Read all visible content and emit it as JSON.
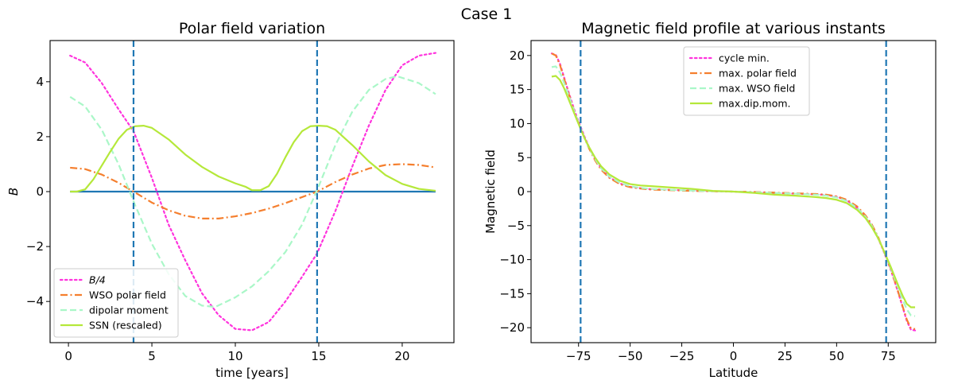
{
  "suptitle": "Case 1",
  "chart_data": [
    {
      "type": "line",
      "title": "Polar field variation",
      "xlabel": "time [years]",
      "ylabel": "B",
      "xlim": [
        -1.1,
        23.1
      ],
      "ylim": [
        -5.5,
        5.5
      ],
      "xticks": [
        0,
        5,
        10,
        15,
        20
      ],
      "xtick_labels": [
        "0",
        "5",
        "10",
        "15",
        "20"
      ],
      "yticks": [
        -4,
        -2,
        0,
        2,
        4
      ],
      "ytick_labels": [
        "−4",
        "−2",
        "0",
        "2",
        "4"
      ],
      "vlines": [
        3.9,
        14.9
      ],
      "hline": {
        "y": 0,
        "x": [
          0.1,
          22
        ],
        "color": "#1f77b4"
      },
      "legend_position": "lower-left",
      "series": [
        {
          "name": "B/4",
          "color": "#ff33dd",
          "dash": "dotted",
          "x": [
            0.1,
            1,
            2,
            3,
            3.9,
            5,
            6,
            7,
            8,
            9,
            10,
            11,
            12,
            13,
            14,
            14.9,
            16,
            17,
            18,
            19,
            20,
            21,
            22
          ],
          "y": [
            4.95,
            4.7,
            3.95,
            3.0,
            2.2,
            0.5,
            -1.2,
            -2.5,
            -3.7,
            -4.5,
            -5.0,
            -5.05,
            -4.75,
            -4.0,
            -3.1,
            -2.25,
            -0.7,
            0.9,
            2.4,
            3.7,
            4.6,
            4.95,
            5.05
          ]
        },
        {
          "name": "WSO polar field",
          "color": "#f57f2e",
          "dash": "dashdot",
          "x": [
            0.1,
            1,
            2,
            3,
            3.9,
            5,
            6,
            7,
            8,
            9,
            10,
            11,
            12,
            13,
            14,
            14.9,
            16,
            17,
            18,
            19,
            20,
            21,
            22
          ],
          "y": [
            0.87,
            0.82,
            0.62,
            0.32,
            0.0,
            -0.4,
            -0.68,
            -0.88,
            -0.98,
            -0.98,
            -0.9,
            -0.78,
            -0.62,
            -0.42,
            -0.2,
            0.0,
            0.35,
            0.62,
            0.84,
            0.97,
            1.0,
            0.97,
            0.88
          ]
        },
        {
          "name": "dipolar moment",
          "color": "#aaf7c8",
          "dash": "dashed",
          "x": [
            0.1,
            1,
            2,
            3,
            4,
            5,
            6,
            7,
            8,
            8.8,
            10,
            11,
            12,
            13,
            14,
            15,
            16,
            17,
            18,
            19,
            19.7,
            21,
            22
          ],
          "y": [
            3.45,
            3.1,
            2.25,
            1.0,
            -0.5,
            -1.9,
            -3.0,
            -3.8,
            -4.15,
            -4.2,
            -3.85,
            -3.45,
            -2.9,
            -2.2,
            -1.2,
            0.2,
            1.7,
            2.9,
            3.7,
            4.1,
            4.2,
            3.95,
            3.55
          ]
        },
        {
          "name": "SSN (rescaled)",
          "color": "#b5e83a",
          "dash": "solid",
          "x": [
            0.1,
            0.5,
            1,
            1.5,
            2,
            2.5,
            3,
            3.5,
            4,
            4.5,
            5,
            6,
            7,
            8,
            9,
            10,
            10.6,
            11,
            11.5,
            12,
            12.5,
            13,
            13.5,
            14,
            14.5,
            15,
            15.5,
            16,
            17,
            18,
            19,
            20,
            21,
            22
          ],
          "y": [
            0.0,
            0.0,
            0.08,
            0.45,
            0.95,
            1.45,
            1.92,
            2.25,
            2.38,
            2.4,
            2.32,
            1.9,
            1.35,
            0.9,
            0.55,
            0.3,
            0.18,
            0.05,
            0.05,
            0.2,
            0.65,
            1.25,
            1.8,
            2.2,
            2.38,
            2.4,
            2.38,
            2.25,
            1.7,
            1.1,
            0.6,
            0.28,
            0.1,
            0.03
          ]
        }
      ]
    },
    {
      "type": "line",
      "title": "Magnetic field profile at various instants",
      "xlabel": "Latitude",
      "ylabel": "Magnetic field",
      "xlim": [
        -98,
        98
      ],
      "ylim": [
        -22.2,
        22.2
      ],
      "xticks": [
        -75,
        -50,
        -25,
        0,
        25,
        50,
        75
      ],
      "xtick_labels": [
        "−75",
        "−50",
        "−25",
        "0",
        "25",
        "50",
        "75"
      ],
      "yticks": [
        -20,
        -15,
        -10,
        -5,
        0,
        5,
        10,
        15,
        20
      ],
      "ytick_labels": [
        "−20",
        "−15",
        "−10",
        "−5",
        "0",
        "5",
        "10",
        "15",
        "20"
      ],
      "vlines": [
        -74,
        74
      ],
      "legend_position": "upper-center",
      "series": [
        {
          "name": "cycle min.",
          "color": "#ff33dd",
          "dash": "dotted",
          "x": [
            -88,
            -86,
            -84,
            -82,
            -80,
            -78,
            -76,
            -74,
            -72,
            -70,
            -67,
            -64,
            -60,
            -55,
            -50,
            -45,
            -40,
            -30,
            -20,
            -10,
            0,
            10,
            20,
            30,
            40,
            45,
            50,
            55,
            60,
            64,
            67,
            70,
            72,
            74,
            76,
            78,
            80,
            82,
            84,
            86,
            88
          ],
          "y": [
            20.3,
            20.1,
            18.8,
            16.8,
            14.8,
            12.9,
            11.1,
            9.5,
            8.0,
            6.6,
            4.8,
            3.4,
            2.1,
            1.2,
            0.7,
            0.5,
            0.35,
            0.25,
            0.15,
            0.05,
            0.0,
            -0.1,
            -0.2,
            -0.3,
            -0.4,
            -0.5,
            -0.75,
            -1.3,
            -2.4,
            -3.7,
            -5.0,
            -6.8,
            -8.2,
            -9.7,
            -11.3,
            -13.1,
            -15.0,
            -17.0,
            -19.0,
            -20.3,
            -20.4
          ]
        },
        {
          "name": "max. polar field",
          "color": "#f57f2e",
          "dash": "dashdot",
          "x": [
            -88,
            -86,
            -84,
            -82,
            -80,
            -78,
            -76,
            -74,
            -72,
            -70,
            -67,
            -64,
            -60,
            -55,
            -50,
            -45,
            -40,
            -30,
            -20,
            -10,
            0,
            10,
            20,
            30,
            40,
            45,
            50,
            55,
            60,
            64,
            67,
            70,
            72,
            74,
            76,
            78,
            80,
            82,
            84,
            86,
            88
          ],
          "y": [
            20.3,
            20.0,
            18.6,
            16.6,
            14.6,
            12.7,
            10.9,
            9.3,
            7.8,
            6.4,
            4.6,
            3.2,
            2.0,
            1.1,
            0.65,
            0.45,
            0.3,
            0.2,
            0.1,
            0.05,
            0.0,
            -0.05,
            -0.15,
            -0.25,
            -0.35,
            -0.45,
            -0.7,
            -1.2,
            -2.2,
            -3.5,
            -4.8,
            -6.6,
            -8.1,
            -9.6,
            -11.2,
            -13.0,
            -14.9,
            -16.9,
            -18.8,
            -20.1,
            -20.2
          ]
        },
        {
          "name": "max. WSO field",
          "color": "#aaf7c8",
          "dash": "dashed",
          "x": [
            -88,
            -86,
            -84,
            -82,
            -80,
            -78,
            -76,
            -74,
            -72,
            -70,
            -67,
            -64,
            -60,
            -55,
            -50,
            -45,
            -40,
            -30,
            -20,
            -10,
            0,
            10,
            20,
            30,
            40,
            45,
            50,
            55,
            60,
            64,
            67,
            70,
            72,
            74,
            76,
            78,
            80,
            82,
            84,
            86,
            88
          ],
          "y": [
            18.3,
            18.4,
            17.5,
            16.0,
            14.3,
            12.6,
            10.9,
            9.3,
            7.8,
            6.5,
            4.8,
            3.4,
            2.2,
            1.3,
            0.8,
            0.55,
            0.4,
            0.25,
            0.15,
            0.05,
            0.0,
            -0.1,
            -0.2,
            -0.3,
            -0.45,
            -0.6,
            -0.85,
            -1.4,
            -2.4,
            -3.7,
            -5.0,
            -6.7,
            -8.1,
            -9.6,
            -11.1,
            -12.7,
            -14.3,
            -15.9,
            -17.3,
            -18.2,
            -18.3
          ]
        },
        {
          "name": "max.dip.mom.",
          "color": "#b5e83a",
          "dash": "solid",
          "x": [
            -88,
            -86,
            -84,
            -82,
            -80,
            -78,
            -76,
            -74,
            -72,
            -70,
            -67,
            -64,
            -60,
            -55,
            -50,
            -45,
            -40,
            -30,
            -20,
            -10,
            0,
            10,
            20,
            30,
            40,
            45,
            50,
            55,
            60,
            64,
            67,
            70,
            72,
            74,
            76,
            78,
            80,
            82,
            84,
            86,
            88
          ],
          "y": [
            16.9,
            17.0,
            16.4,
            15.2,
            13.7,
            12.2,
            10.7,
            9.2,
            7.8,
            6.6,
            5.0,
            3.7,
            2.5,
            1.6,
            1.1,
            0.9,
            0.8,
            0.6,
            0.4,
            0.1,
            0.0,
            -0.2,
            -0.45,
            -0.6,
            -0.8,
            -0.95,
            -1.2,
            -1.7,
            -2.7,
            -3.9,
            -5.2,
            -6.8,
            -8.1,
            -9.5,
            -10.9,
            -12.4,
            -13.9,
            -15.3,
            -16.5,
            -17.0,
            -17.0
          ]
        }
      ]
    }
  ]
}
